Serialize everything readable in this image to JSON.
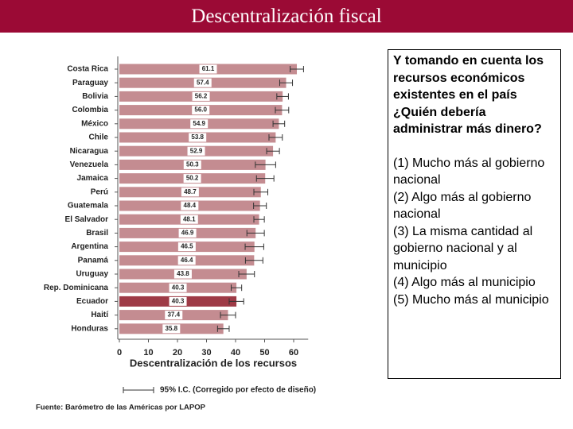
{
  "header": {
    "title": "Descentralización fiscal"
  },
  "chart_data": {
    "type": "bar",
    "orientation": "horizontal",
    "categories": [
      "Costa Rica",
      "Paraguay",
      "Bolivia",
      "Colombia",
      "México",
      "Chile",
      "Nicaragua",
      "Venezuela",
      "Jamaica",
      "Perú",
      "Guatemala",
      "El Salvador",
      "Brasil",
      "Argentina",
      "Panamá",
      "Uruguay",
      "Rep. Dominicana",
      "Ecuador",
      "Haití",
      "Honduras"
    ],
    "values": [
      61.1,
      57.4,
      56.2,
      56.0,
      54.9,
      53.8,
      52.9,
      50.3,
      50.2,
      48.7,
      48.4,
      48.1,
      46.9,
      46.5,
      46.4,
      43.8,
      40.3,
      40.3,
      37.4,
      35.8
    ],
    "value_labels": [
      "61.1",
      "57.4",
      "56.2",
      "56.0",
      "54.9",
      "53.8",
      "52.9",
      "50.3",
      "50.2",
      "48.7",
      "48.4",
      "48.1",
      "46.9",
      "46.5",
      "46.4",
      "43.8",
      "40.3",
      "40.3",
      "37.4",
      "35.8"
    ],
    "errors": [
      2.3,
      2.2,
      2.0,
      2.3,
      2.0,
      2.3,
      2.2,
      3.5,
      3.0,
      2.4,
      2.2,
      1.8,
      3.0,
      3.2,
      3.0,
      2.7,
      1.8,
      2.5,
      2.6,
      2.0
    ],
    "colors": [
      "#c48c91",
      "#c48c91",
      "#c48c91",
      "#c48c91",
      "#c48c91",
      "#c48c91",
      "#c48c91",
      "#c48c91",
      "#c48c91",
      "#c48c91",
      "#c48c91",
      "#c48c91",
      "#c48c91",
      "#c48c91",
      "#c48c91",
      "#c48c91",
      "#c48c91",
      "#9e3a46",
      "#c48c91",
      "#c48c91"
    ],
    "xlim": [
      0,
      65
    ],
    "xticks": [
      0,
      10,
      20,
      30,
      40,
      50,
      60
    ],
    "xlabel": "Descentralización de los recursos",
    "legend": "95% I.C. (Corregido por efecto de diseño)",
    "source": "Fuente: Barómetro de las Américas por LAPOP"
  },
  "sidebar": {
    "question": "Y tomando en cuenta los recursos económicos existentes en el país ¿Quién debería administrar más dinero?",
    "options": [
      "(1) Mucho más al gobierno nacional",
      "(2) Algo más al gobierno nacional",
      "(3) La misma cantidad al gobierno nacional y al municipio",
      "(4) Algo más al municipio",
      "(5) Mucho más al municipio"
    ]
  }
}
